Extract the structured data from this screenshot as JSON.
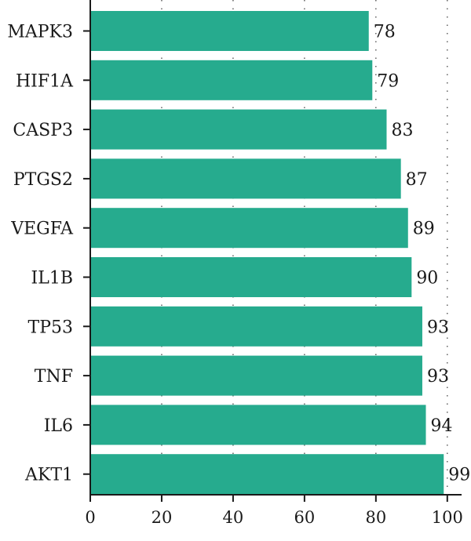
{
  "chart_data": {
    "type": "bar",
    "orientation": "horizontal",
    "categories": [
      "MAPK3",
      "HIF1A",
      "CASP3",
      "PTGS2",
      "VEGFA",
      "IL1B",
      "TP53",
      "TNF",
      "IL6",
      "AKT1"
    ],
    "values": [
      78,
      79,
      83,
      87,
      89,
      90,
      93,
      93,
      94,
      99
    ],
    "data_labels": [
      "78",
      "79",
      "83",
      "87",
      "89",
      "90",
      "93",
      "93",
      "94",
      "99"
    ],
    "xticks": [
      "0",
      "20",
      "40",
      "60",
      "80",
      "100"
    ],
    "xlim": [
      0,
      104
    ],
    "grid": "vertical dotted",
    "bar_color": "#26ab8e",
    "title": "",
    "xlabel": "",
    "ylabel": ""
  }
}
